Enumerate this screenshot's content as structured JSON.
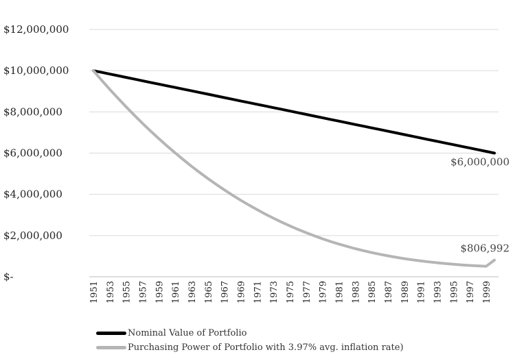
{
  "chart_data": {
    "type": "line",
    "x": [
      1951,
      1952,
      1953,
      1954,
      1955,
      1956,
      1957,
      1958,
      1959,
      1960,
      1961,
      1962,
      1963,
      1964,
      1965,
      1966,
      1967,
      1968,
      1969,
      1970,
      1971,
      1972,
      1973,
      1974,
      1975,
      1976,
      1977,
      1978,
      1979,
      1980,
      1981,
      1982,
      1983,
      1984,
      1985,
      1986,
      1987,
      1988,
      1989,
      1990,
      1991,
      1992,
      1993,
      1994,
      1995,
      1996,
      1997,
      1998,
      1999,
      2000
    ],
    "xticks": [
      "1951",
      "1953",
      "1955",
      "1957",
      "1959",
      "1961",
      "1963",
      "1965",
      "1967",
      "1969",
      "1971",
      "1973",
      "1975",
      "1977",
      "1979",
      "1981",
      "1983",
      "1985",
      "1987",
      "1989",
      "1991",
      "1993",
      "1995",
      "1997",
      "1999"
    ],
    "yticks": [
      {
        "value": 12000000,
        "label": "$12,000,000"
      },
      {
        "value": 10000000,
        "label": "$10,000,000"
      },
      {
        "value": 8000000,
        "label": "$8,000,000"
      },
      {
        "value": 6000000,
        "label": "$6,000,000"
      },
      {
        "value": 4000000,
        "label": "$4,000,000"
      },
      {
        "value": 2000000,
        "label": "$2,000,000"
      },
      {
        "value": 0,
        "label": "$-"
      }
    ],
    "ylim": [
      0,
      12000000
    ],
    "grid": "horizontal",
    "legend_position": "bottom-left",
    "series": [
      {
        "name": "Nominal Value of Portfolio",
        "color": "#000000",
        "values": [
          10000000,
          9918367,
          9836735,
          9755102,
          9673469,
          9591837,
          9510204,
          9428571,
          9346939,
          9265306,
          9183673,
          9102041,
          9020408,
          8938776,
          8857143,
          8775510,
          8693878,
          8612245,
          8530612,
          8448980,
          8367347,
          8285714,
          8204082,
          8122449,
          8040816,
          7959184,
          7877551,
          7795918,
          7714286,
          7632653,
          7551020,
          7469388,
          7387755,
          7306122,
          7224490,
          7142857,
          7061224,
          6979592,
          6897959,
          6816327,
          6734694,
          6653061,
          6571429,
          6489796,
          6408163,
          6326531,
          6244898,
          6163265,
          6081633,
          6000000
        ],
        "end_label": "$6,000,000"
      },
      {
        "name": "Purchasing Power of Portfolio with 3.97% avg. inflation rate)",
        "color": "#b5b5b5",
        "values": [
          10000000,
          9540000,
          9094000,
          8662000,
          8244000,
          7839000,
          7447000,
          7067000,
          6700000,
          6346000,
          6005000,
          5676000,
          5359000,
          5055000,
          4763000,
          4483000,
          4215000,
          3958000,
          3713000,
          3479000,
          3256000,
          3043000,
          2841000,
          2650000,
          2469000,
          2298000,
          2137000,
          1985000,
          1843000,
          1710000,
          1586000,
          1471000,
          1364000,
          1265000,
          1174000,
          1090000,
          1013000,
          943000,
          879000,
          821000,
          768000,
          720000,
          677000,
          639000,
          605000,
          575000,
          549000,
          527000,
          508000,
          806992
        ],
        "end_label": "$806,992"
      }
    ]
  }
}
